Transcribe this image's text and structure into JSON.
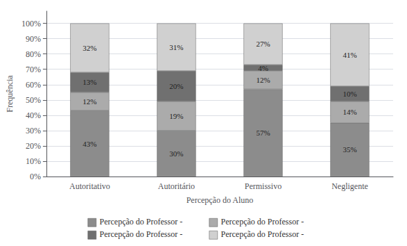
{
  "chart_data": {
    "type": "bar",
    "stacked": true,
    "categories": [
      "Autoritativo",
      "Autoritário",
      "Permissivo",
      "Negligente"
    ],
    "series": [
      {
        "name": "Percepção do Professor -",
        "color": "#8c8c8c",
        "values": [
          43,
          30,
          57,
          35
        ],
        "value_labels": [
          "43%",
          "30%",
          "57%",
          "35%"
        ]
      },
      {
        "name": "Percepção do Professor -",
        "color": "#ababab",
        "values": [
          12,
          19,
          12,
          14
        ],
        "value_labels": [
          "12%",
          "19%",
          "12%",
          "14%"
        ]
      },
      {
        "name": "Percepção do Professor -",
        "color": "#707070",
        "values": [
          13,
          20,
          4,
          10
        ],
        "value_labels": [
          "13%",
          "20%",
          "4%",
          "10%"
        ]
      },
      {
        "name": "Percepção do Professor -",
        "color": "#d0d0d0",
        "values": [
          32,
          31,
          27,
          41
        ],
        "value_labels": [
          "32%",
          "31%",
          "27%",
          "41%"
        ]
      }
    ],
    "xlabel": "Percepção do Aluno",
    "ylabel": "Frequência",
    "ylim": [
      0,
      108
    ],
    "yticks": [
      {
        "value": 0,
        "label": "0%"
      },
      {
        "value": 10,
        "label": "10%"
      },
      {
        "value": 20,
        "label": "20%"
      },
      {
        "value": 30,
        "label": "30%"
      },
      {
        "value": 40,
        "label": "40%"
      },
      {
        "value": 50,
        "label": "50%"
      },
      {
        "value": 60,
        "label": "60%"
      },
      {
        "value": 70,
        "label": "70%"
      },
      {
        "value": 80,
        "label": "80%"
      },
      {
        "value": 90,
        "label": "90%"
      },
      {
        "value": 100,
        "label": "100%"
      }
    ],
    "grid": true,
    "data_labels": true,
    "legend": "bottom"
  }
}
